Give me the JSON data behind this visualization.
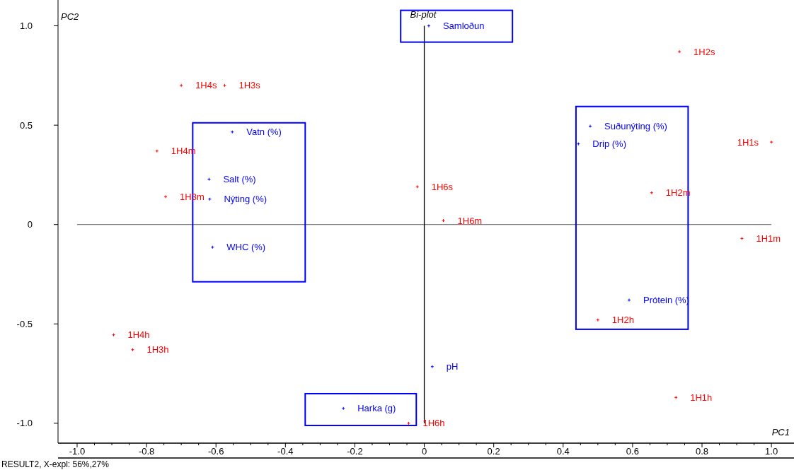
{
  "chart_data": {
    "type": "scatter",
    "title": "Bi-plot",
    "xlabel": "PC1",
    "ylabel": "PC2",
    "annotations": [
      "RESULT2,  X-expl: 56%,27%"
    ],
    "marker": "cross",
    "grid": false,
    "xlim": [
      -1.055,
      1.065
    ],
    "ylim": [
      -1.1,
      1.13
    ],
    "xticks": [
      {
        "value": -1,
        "label": "-1.0"
      },
      {
        "value": -0.95,
        "label": null
      },
      {
        "value": -0.9,
        "label": null
      },
      {
        "value": -0.85,
        "label": null
      },
      {
        "value": -0.8,
        "label": "-0.8"
      },
      {
        "value": -0.75,
        "label": null
      },
      {
        "value": -0.7,
        "label": null
      },
      {
        "value": -0.65,
        "label": null
      },
      {
        "value": -0.6,
        "label": "-0.6"
      },
      {
        "value": -0.55,
        "label": null
      },
      {
        "value": -0.5,
        "label": null
      },
      {
        "value": -0.45,
        "label": null
      },
      {
        "value": -0.4,
        "label": "-0.4"
      },
      {
        "value": -0.35,
        "label": null
      },
      {
        "value": -0.3,
        "label": null
      },
      {
        "value": -0.25,
        "label": null
      },
      {
        "value": -0.2,
        "label": "-0.2"
      },
      {
        "value": -0.15,
        "label": null
      },
      {
        "value": -0.1,
        "label": null
      },
      {
        "value": -0.05,
        "label": null
      },
      0,
      {
        "value": 0.05,
        "label": null
      },
      {
        "value": 0.1,
        "label": null
      },
      {
        "value": 0.15,
        "label": null
      },
      0.2,
      {
        "value": 0.25,
        "label": null
      },
      {
        "value": 0.3,
        "label": null
      },
      {
        "value": 0.35,
        "label": null
      },
      0.4,
      {
        "value": 0.45,
        "label": null
      },
      {
        "value": 0.5,
        "label": null
      },
      {
        "value": 0.55,
        "label": null
      },
      0.6,
      {
        "value": 0.65,
        "label": null
      },
      {
        "value": 0.7,
        "label": null
      },
      {
        "value": 0.75,
        "label": null
      },
      0.8,
      {
        "value": 0.85,
        "label": null
      },
      {
        "value": 0.9,
        "label": null
      },
      {
        "value": 0.95,
        "label": null
      },
      {
        "value": 1,
        "label": "1.0"
      }
    ],
    "yticks": [
      {
        "value": -1,
        "label": "-1.0"
      },
      -0.5,
      0,
      0.5,
      {
        "value": 1,
        "label": "1.0"
      }
    ],
    "ref_lines": [
      {
        "axis": "y",
        "value": 0,
        "color": "#808080"
      },
      {
        "axis": "x",
        "value": 0,
        "color": "#000000"
      }
    ],
    "series": [
      {
        "color": "#ff0000",
        "x": [
          -0.7,
          -0.575,
          -0.77,
          -0.745,
          -0.02,
          0.055,
          0.735,
          1.0,
          0.655,
          0.915,
          0.5,
          0.725,
          -0.895,
          -0.84,
          -0.045
        ],
        "values": [
          0.7,
          0.7,
          0.37,
          0.14,
          0.19,
          0.02,
          0.87,
          0.415,
          0.16,
          -0.07,
          -0.48,
          -0.87,
          -0.555,
          -0.63,
          -1.0
        ],
        "value_labels": [
          "1H4s",
          "1H3s",
          "1H4m",
          "1H3m",
          "1H6s",
          "1H6m",
          "1H2s",
          "1H1s",
          "1H2m",
          "1H1m",
          "1H2h",
          "1H1h",
          "1H4h",
          "1H3h",
          "1H6h"
        ]
      },
      {
        "color": "#0000ff",
        "x": [
          0.013,
          -0.553,
          -0.62,
          -0.618,
          -0.61,
          0.478,
          0.444,
          0.59,
          0.023,
          -0.233
        ],
        "values": [
          1.0,
          0.466,
          0.228,
          0.128,
          -0.114,
          0.495,
          0.406,
          -0.38,
          -0.715,
          -0.925
        ],
        "value_labels": [
          "Samloðun",
          "Vatn (%)",
          "Salt (%)",
          "Nýting (%)",
          "WHC (%)",
          "Suðunýting (%)",
          "Drip (%)",
          "Prótein (%)",
          "pH",
          "Harka (g)"
        ]
      }
    ]
  }
}
